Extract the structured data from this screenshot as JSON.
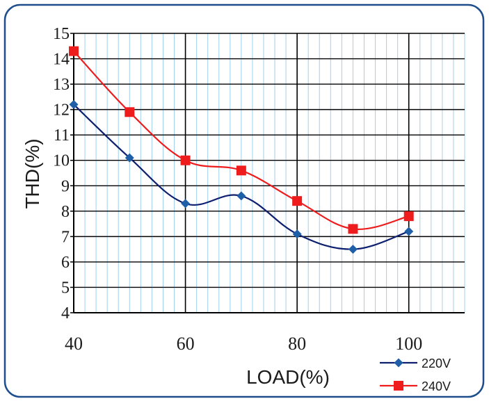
{
  "chart_data": {
    "type": "line",
    "xlabel": "LOAD(%)",
    "ylabel": "THD(%)",
    "x": [
      40,
      50,
      60,
      70,
      80,
      90,
      100
    ],
    "xlim": [
      40,
      110
    ],
    "ylim": [
      4,
      15
    ],
    "x_ticks": [
      40,
      60,
      80,
      100
    ],
    "y_ticks": [
      4,
      5,
      6,
      7,
      8,
      9,
      10,
      11,
      12,
      13,
      14,
      15
    ],
    "grid": true,
    "legend_position": "bottom-right",
    "series": [
      {
        "name": "220V",
        "color": "#1f5fa8",
        "line_color": "#0d1f6e",
        "marker": "diamond",
        "values": [
          12.2,
          10.1,
          8.3,
          8.6,
          7.1,
          6.5,
          7.2
        ]
      },
      {
        "name": "240V",
        "color": "#ee1c1c",
        "line_color": "#ee1c1c",
        "marker": "square",
        "values": [
          14.3,
          11.9,
          10.0,
          9.6,
          8.4,
          7.3,
          7.8
        ]
      }
    ]
  }
}
